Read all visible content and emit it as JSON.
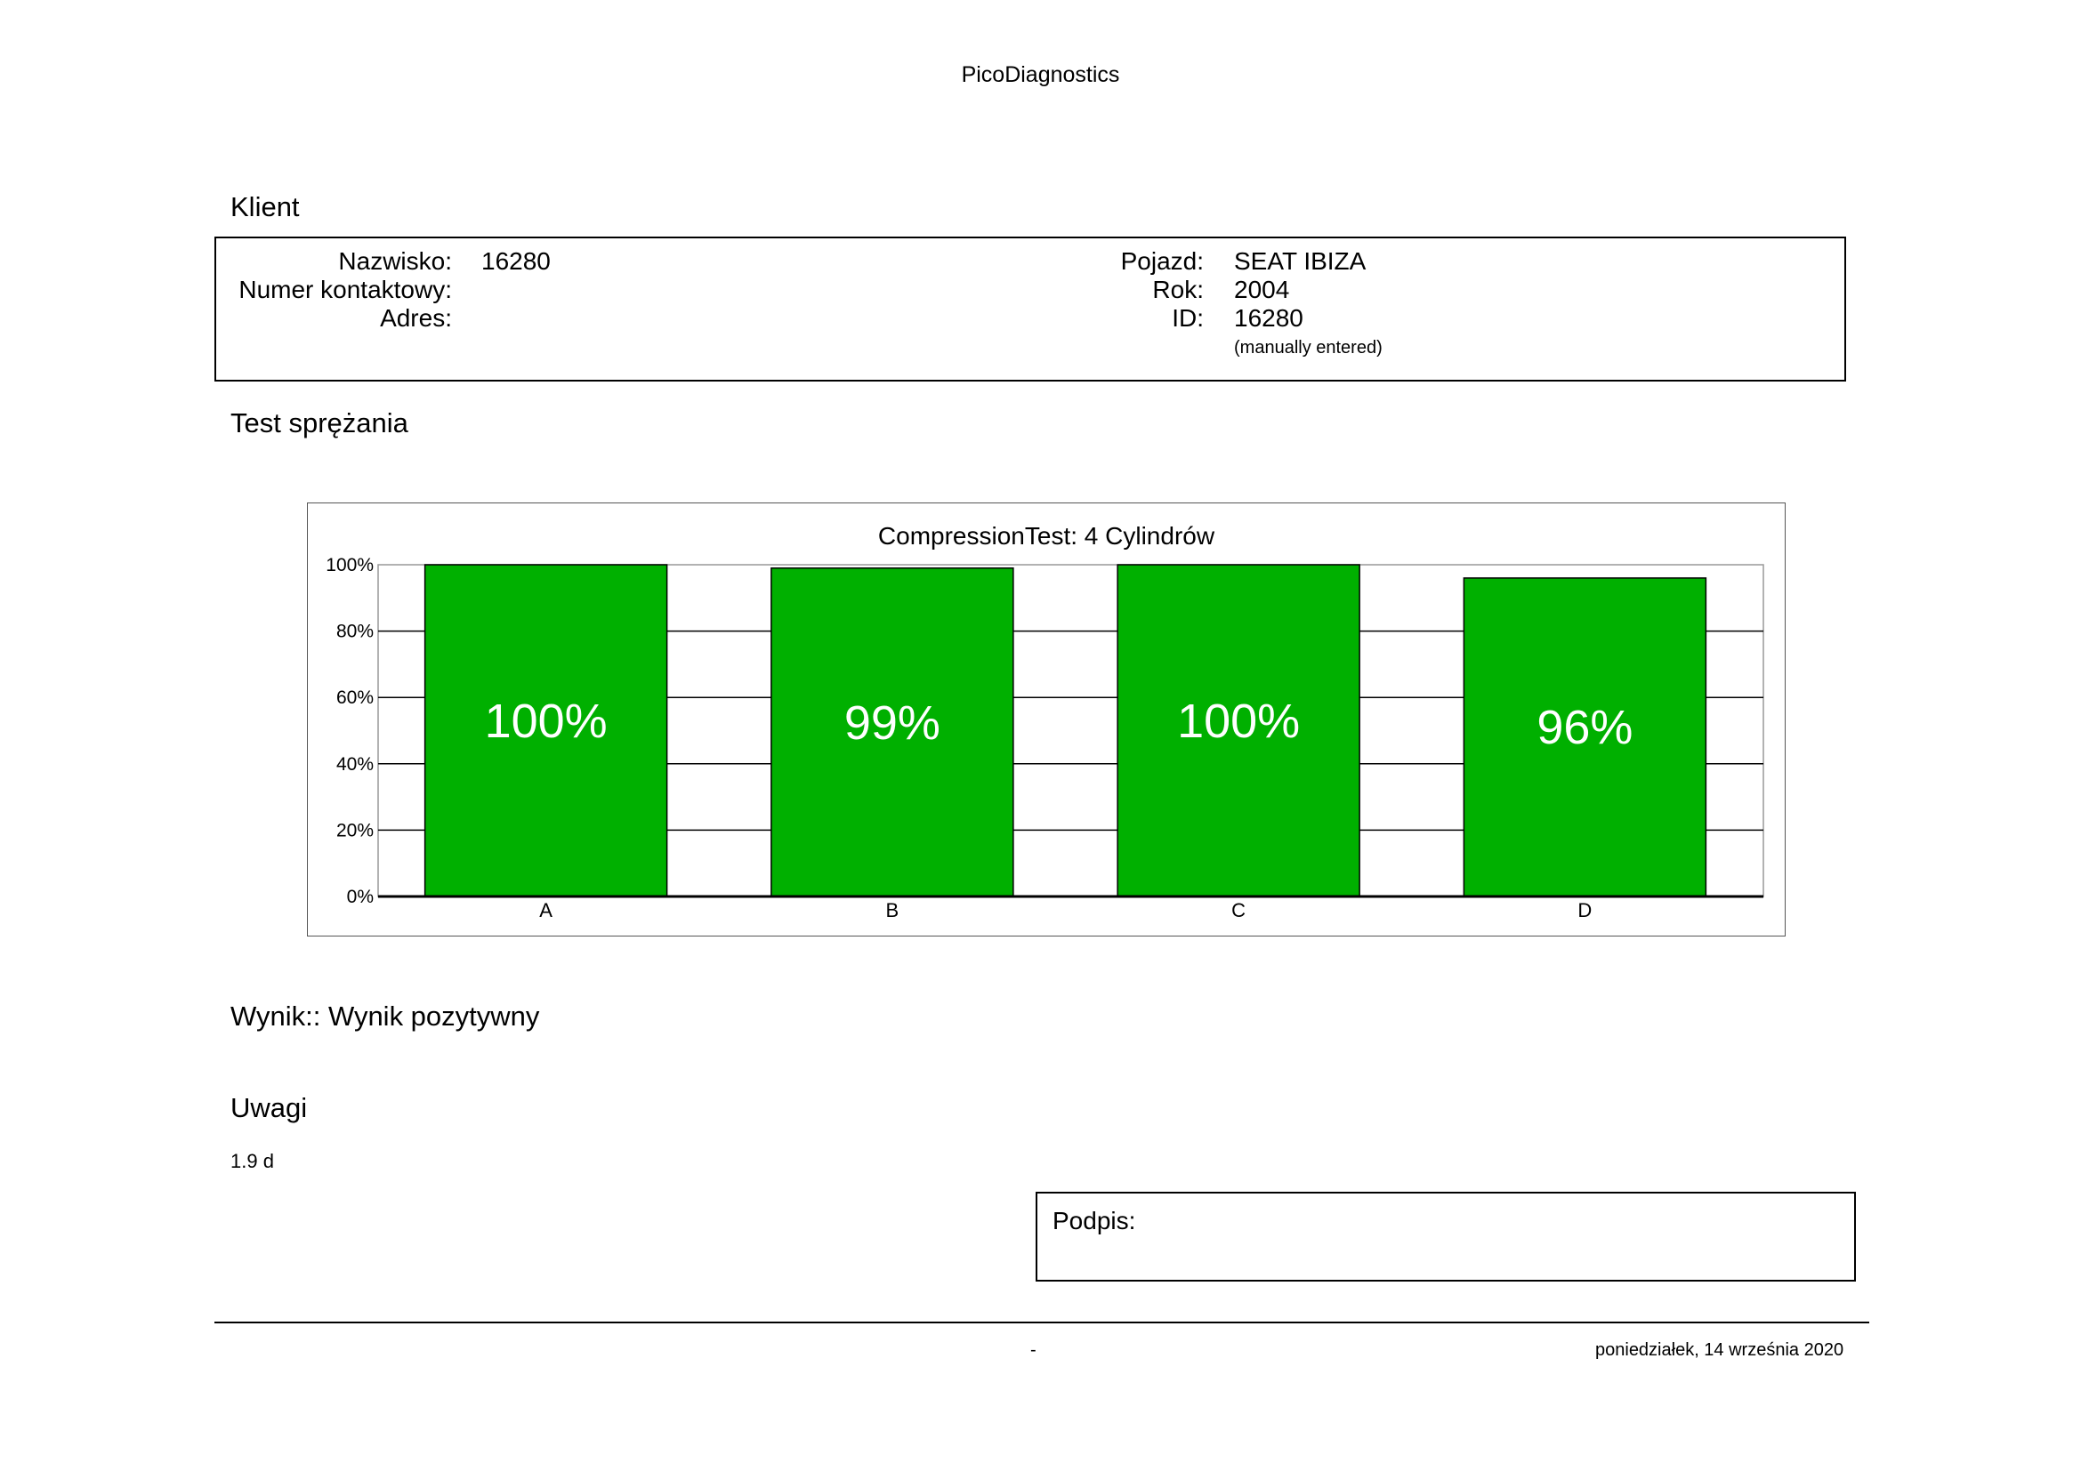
{
  "header": {
    "title": "PicoDiagnostics"
  },
  "client": {
    "section_title": "Klient",
    "fields_left": [
      {
        "label": "Nazwisko:",
        "value": "16280"
      },
      {
        "label": "Numer kontaktowy:",
        "value": ""
      },
      {
        "label": "Adres:",
        "value": ""
      }
    ],
    "fields_right": [
      {
        "label": "Pojazd:",
        "value": "SEAT IBIZA"
      },
      {
        "label": "Rok:",
        "value": "2004"
      },
      {
        "label": "ID:",
        "value": "16280"
      }
    ],
    "id_note": "(manually entered)"
  },
  "test": {
    "section_title": "Test sprężania"
  },
  "chart_data": {
    "type": "bar",
    "title": "CompressionTest: 4 Cylindrów",
    "categories": [
      "A",
      "B",
      "C",
      "D"
    ],
    "values": [
      100,
      99,
      100,
      96
    ],
    "data_labels": [
      "100%",
      "99%",
      "100%",
      "96%"
    ],
    "ylim": [
      0,
      100
    ],
    "yticks": [
      "0%",
      "20%",
      "40%",
      "60%",
      "80%",
      "100%"
    ],
    "grid": true,
    "bar_color": "#00b000"
  },
  "result": {
    "text": "Wynik:: Wynik pozytywny"
  },
  "notes": {
    "section_title": "Uwagi",
    "text": "1.9 d"
  },
  "signature": {
    "label": "Podpis:"
  },
  "footer": {
    "center": "-",
    "date": "poniedziałek, 14 września 2020"
  }
}
